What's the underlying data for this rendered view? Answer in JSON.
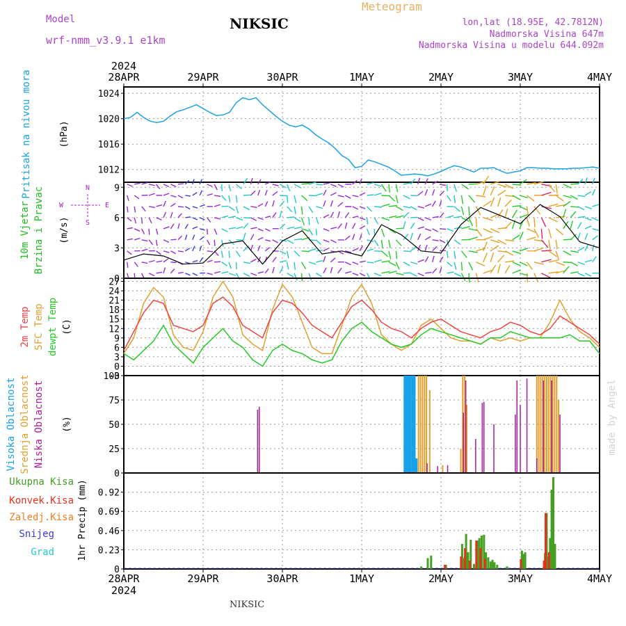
{
  "header": {
    "model_label": "Model",
    "model_value": "wrf-nmm_v3.9.1 e1km",
    "station": "NIKSIC",
    "product": "Meteogram",
    "lonlat": "lon,lat (18.95E, 42.7812N)",
    "elevation": "Nadmorska Visina 647m",
    "model_elevation": "Nadmorska Visina u modelu 644.092m"
  },
  "footer": {
    "station": "NIKSIC",
    "credit": "made by Angel"
  },
  "time_axis": {
    "year": "2024",
    "labels": [
      "28APR",
      "29APR",
      "30APR",
      "1MAY",
      "2MAY",
      "3MAY",
      "4MAY"
    ],
    "range_hours": [
      0,
      144
    ]
  },
  "colors": {
    "pressure": "#1ca3e6",
    "temp2m": "#ee4444",
    "sfc_temp": "#e0a030",
    "dewpoint": "#22cc22",
    "cloud_high": "#18a0e8",
    "cloud_mid": "#e0a030",
    "cloud_low": "#aa1a99",
    "precip_total": "#44a020",
    "precip_conv": "#e8301c",
    "precip_freezing": "#f08020",
    "precip_snow": "#3a3ae0",
    "precip_hail": "#22cccc",
    "wind_label": "#22bb22",
    "compass": "#aa22cc"
  },
  "panels": {
    "pressure": {
      "label": "Pritisak na nivou mora",
      "unit": "(hPa)",
      "ticks": [
        "1012",
        "1016",
        "1020",
        "1024"
      ],
      "ylim": [
        1010,
        1025
      ]
    },
    "wind": {
      "label1": "10m Vjetar",
      "label2": "Brzina i Pravac",
      "unit": "(m/s)",
      "ticks": [
        "0",
        "3",
        "6",
        "9"
      ],
      "ylim": [
        0,
        9.5
      ],
      "compass": {
        "n": "N",
        "s": "S",
        "w": "W",
        "e": "E"
      }
    },
    "temp": {
      "label1": "2m Temp",
      "label2": "SFC Temp",
      "label3": "dewpt Temp",
      "unit": "(C)",
      "ticks": [
        "-3",
        "0",
        "3",
        "6",
        "9",
        "12",
        "15",
        "18",
        "21",
        "24",
        "27"
      ],
      "ylim": [
        -3,
        28
      ]
    },
    "cloud": {
      "label1": "Visoka Oblacnost",
      "label2": "Srednja Oblacnost",
      "label3": "Niska Oblacnost",
      "unit": "(%)",
      "ticks": [
        "0",
        "25",
        "50",
        "75",
        "100"
      ],
      "ylim": [
        0,
        100
      ]
    },
    "precip": {
      "labels": [
        "Ukupna Kisa",
        "Konvek.Kisa",
        "Zaledj.Kisa",
        "Snijeg",
        "Grad"
      ],
      "unit": "1hr Precip (mm)",
      "ticks": [
        "0",
        "0.23",
        "0.46",
        "0.69",
        "0.92"
      ],
      "ylim": [
        0,
        1.15
      ]
    }
  },
  "chart_data": [
    {
      "type": "line",
      "title": "Pritisak na nivou mora",
      "ylabel": "(hPa)",
      "ylim": [
        1010,
        1025
      ],
      "x": [
        0,
        2,
        4,
        6,
        8,
        10,
        12,
        14,
        16,
        18,
        20,
        22,
        24,
        26,
        28,
        30,
        32,
        34,
        36,
        38,
        40,
        42,
        44,
        46,
        48,
        50,
        52,
        54,
        56,
        58,
        60,
        62,
        64,
        66,
        68,
        70,
        72,
        74,
        76,
        78,
        80,
        82,
        84,
        86,
        88,
        90,
        92,
        94,
        96,
        98,
        100,
        102,
        104,
        106,
        108,
        110,
        112,
        114,
        116,
        118,
        120,
        122,
        124,
        126,
        128,
        130,
        132,
        134,
        136,
        138,
        140,
        142,
        144
      ],
      "series": [
        {
          "values": [
            1020,
            1020.2,
            1021,
            1020.2,
            1019.6,
            1019.4,
            1019.6,
            1020.4,
            1021.1,
            1021.4,
            1021.8,
            1022.2,
            1021.6,
            1021,
            1020.5,
            1020.6,
            1021,
            1022.5,
            1023.3,
            1023,
            1023.3,
            1022.2,
            1021.3,
            1020.4,
            1019.6,
            1019,
            1018.7,
            1019,
            1018.4,
            1017.5,
            1016.8,
            1016.2,
            1015.3,
            1014.2,
            1013.6,
            1012.3,
            1012.5,
            1013.5,
            1013.2,
            1012.8,
            1012.4,
            1011.8,
            1011.1,
            1011.2,
            1011.3,
            1011.2,
            1011,
            1011.3,
            1011.7,
            1012.2,
            1012.6,
            1012.4,
            1012,
            1011.6,
            1012.2,
            1012.2,
            1012.3,
            1011.8,
            1011.4,
            1011.6,
            1011.8,
            1012.3,
            1012.3,
            1012.2,
            1012.2,
            1012.1,
            1012.1,
            1012.1,
            1012.2,
            1012.2,
            1012.3,
            1012.4,
            1012.2
          ]
        }
      ]
    },
    {
      "type": "line",
      "title": "10m Vjetar Brzina i Pravac",
      "ylabel": "(m/s)",
      "ylim": [
        0,
        9.5
      ],
      "x": [
        0,
        6,
        12,
        18,
        24,
        30,
        36,
        42,
        48,
        54,
        60,
        66,
        72,
        78,
        84,
        90,
        96,
        102,
        108,
        114,
        120,
        126,
        132,
        138,
        144
      ],
      "series": [
        {
          "values": [
            1.8,
            2.4,
            2.2,
            1.4,
            1.5,
            3.4,
            3.7,
            1.4,
            3.7,
            4.7,
            2.4,
            2.7,
            2.2,
            5.3,
            4.3,
            2.7,
            2.5,
            5.3,
            7,
            6.2,
            5.4,
            7.3,
            6.1,
            3.6,
            3
          ]
        }
      ]
    },
    {
      "type": "line",
      "title": "Temperature",
      "ylabel": "(C)",
      "ylim": [
        -3,
        28
      ],
      "x": [
        0,
        3,
        6,
        9,
        12,
        15,
        18,
        21,
        24,
        27,
        30,
        33,
        36,
        39,
        42,
        45,
        48,
        51,
        54,
        57,
        60,
        63,
        66,
        69,
        72,
        75,
        78,
        81,
        84,
        87,
        90,
        93,
        96,
        99,
        102,
        105,
        108,
        111,
        114,
        117,
        120,
        123,
        126,
        129,
        132,
        135,
        138,
        141,
        144
      ],
      "series": [
        {
          "name": "2m Temp",
          "values": [
            5,
            11,
            17,
            21,
            20,
            13,
            12,
            11,
            13,
            20,
            22,
            19,
            13,
            11,
            9,
            17,
            21,
            20,
            17,
            13,
            11,
            9,
            14,
            19,
            21,
            18,
            14,
            12,
            11,
            9,
            12,
            14,
            15,
            13,
            11,
            10,
            9,
            11,
            12,
            14,
            13,
            11,
            10,
            12,
            16,
            14,
            12,
            10,
            7
          ]
        },
        {
          "name": "SFC Temp",
          "values": [
            4,
            9,
            20,
            25,
            22,
            10,
            6,
            5,
            11,
            22,
            27,
            22,
            10,
            7,
            5,
            18,
            26,
            22,
            14,
            6,
            4,
            4,
            13,
            22,
            26,
            20,
            10,
            7,
            5,
            7,
            13,
            15,
            12,
            9,
            8,
            8,
            7,
            9,
            8,
            9,
            8,
            9,
            9,
            14,
            21,
            15,
            11,
            9,
            6
          ]
        },
        {
          "name": "dewpt Temp",
          "values": [
            4,
            2,
            5,
            8,
            13,
            7,
            4,
            1,
            6,
            9,
            12,
            8,
            6,
            2,
            0,
            5,
            7,
            5,
            4,
            2,
            1,
            2,
            8,
            12,
            14,
            11,
            9,
            7,
            6,
            7,
            10,
            12,
            11,
            10,
            9,
            8,
            7,
            9,
            9,
            11,
            10,
            9,
            9,
            9,
            9,
            10,
            8,
            8,
            4
          ]
        }
      ]
    },
    {
      "type": "bar",
      "title": "Oblacnost",
      "ylabel": "(%)",
      "ylim": [
        0,
        100
      ],
      "series": [
        {
          "name": "Visoka Oblacnost",
          "x": [
            85,
            85.6,
            86.2,
            86.8,
            87.4,
            88,
            88.6
          ],
          "values": [
            100,
            100,
            100,
            100,
            100,
            100,
            15
          ]
        },
        {
          "name": "Srednja Oblacnost",
          "x": [
            89.2,
            89.8,
            90.4,
            91,
            91.6,
            92.6,
            96.5,
            102,
            102.6,
            103.2,
            103.8,
            125,
            125.6,
            126.2,
            126.8,
            127.4,
            128,
            128.6,
            129.2,
            129.8,
            130.4,
            131,
            131.6
          ],
          "values": [
            100,
            100,
            100,
            100,
            100,
            85,
            8,
            25,
            100,
            100,
            70,
            100,
            100,
            100,
            100,
            100,
            100,
            100,
            100,
            100,
            100,
            100,
            75
          ]
        },
        {
          "name": "Niska Oblacnost",
          "x": [
            40.5,
            41,
            91.8,
            95,
            98,
            102.8,
            103.5,
            106.5,
            108.5,
            109,
            112,
            118.5,
            119,
            120,
            122,
            125,
            127,
            129.5,
            132
          ],
          "values": [
            65,
            68,
            10,
            7,
            8,
            62,
            95,
            35,
            72,
            73,
            50,
            60,
            95,
            70,
            97,
            15,
            95,
            95,
            60
          ]
        }
      ]
    },
    {
      "type": "bar",
      "title": "1hr Precip",
      "ylabel": "1hr Precip (mm)",
      "ylim": [
        0,
        1.15
      ],
      "series": [
        {
          "name": "Ukupna Kisa",
          "x": [
            90,
            92,
            93,
            97.5,
            102,
            102.4,
            103,
            103.6,
            104.2,
            105,
            106,
            107,
            107.6,
            108.3,
            109,
            109.6,
            110.3,
            111,
            111.6,
            112.2,
            113,
            116,
            120.5,
            121,
            121.5,
            127,
            127.5,
            128,
            128.5,
            129,
            129.5,
            130,
            130.5
          ],
          "values": [
            0.03,
            0.13,
            0.16,
            0.05,
            0.02,
            0.3,
            0.13,
            0.42,
            0.2,
            0.35,
            0.06,
            0.34,
            0.37,
            0.4,
            0.41,
            0.2,
            0.14,
            0.09,
            0.11,
            0.08,
            0.05,
            0.03,
            0.22,
            0.18,
            0.2,
            0.02,
            0.19,
            0.67,
            0.15,
            0.37,
            0.95,
            1.1,
            0.3
          ]
        },
        {
          "name": "Konvek.Kisa",
          "x": [
            97.5,
            102.4,
            103.6,
            105,
            107,
            108.3,
            109.6,
            120.5,
            127.5,
            128,
            129
          ],
          "values": [
            0.05,
            0.15,
            0.25,
            0.1,
            0.34,
            0.25,
            0.12,
            0.12,
            0.1,
            0.67,
            0.2
          ]
        }
      ]
    }
  ]
}
